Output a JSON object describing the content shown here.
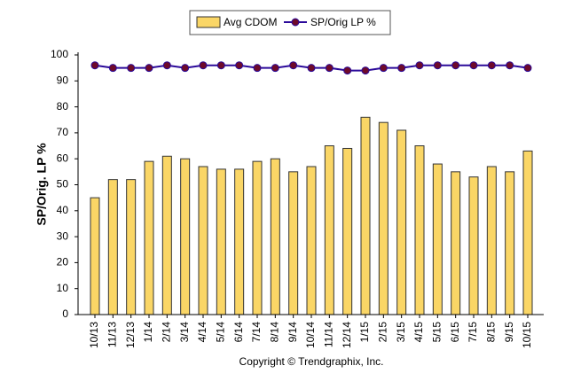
{
  "chart_data": {
    "type": "combo",
    "y_label": "SP/Orig. LP %",
    "footer": "Copyright © Trendgraphix, Inc.",
    "categories": [
      "10/13",
      "11/13",
      "12/13",
      "1/14",
      "2/14",
      "3/14",
      "4/14",
      "5/14",
      "6/14",
      "7/14",
      "8/14",
      "9/14",
      "10/14",
      "11/14",
      "12/14",
      "1/15",
      "2/15",
      "3/15",
      "4/15",
      "5/15",
      "6/15",
      "7/15",
      "8/15",
      "9/15",
      "10/15"
    ],
    "series": [
      {
        "name": "Avg CDOM",
        "type": "bar",
        "color": "#fad666",
        "values": [
          45,
          52,
          52,
          59,
          61,
          60,
          57,
          56,
          56,
          59,
          60,
          55,
          57,
          65,
          64,
          76,
          74,
          71,
          65,
          58,
          55,
          53,
          57,
          55,
          63
        ]
      },
      {
        "name": "SP/Orig LP %",
        "type": "line",
        "color": "#2b0a9a",
        "marker_color": "#6e0a2a",
        "values": [
          96,
          95,
          95,
          95,
          96,
          95,
          96,
          96,
          96,
          95,
          95,
          96,
          95,
          95,
          94,
          94,
          95,
          95,
          96,
          96,
          96,
          96,
          96,
          96,
          95
        ]
      }
    ],
    "ylim": [
      0,
      100
    ],
    "yticks": [
      0,
      10,
      20,
      30,
      40,
      50,
      60,
      70,
      80,
      90,
      100
    ],
    "grid": false,
    "legend": "top"
  }
}
